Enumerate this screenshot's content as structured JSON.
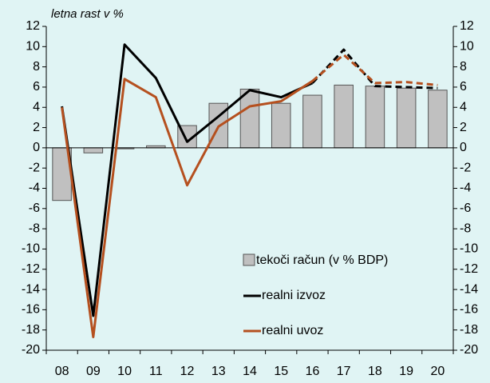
{
  "chart_data": {
    "type": "bar_line",
    "subtitle": "letna rast v %",
    "categories": [
      "08",
      "09",
      "10",
      "11",
      "12",
      "13",
      "14",
      "15",
      "16",
      "17",
      "18",
      "19",
      "20"
    ],
    "series": [
      {
        "name": "tekoči račun  (v % BDP)",
        "kind": "bar",
        "color": "#c0c0c0",
        "values": [
          -5.2,
          -0.5,
          -0.1,
          0.2,
          2.2,
          4.4,
          5.8,
          4.4,
          5.2,
          6.2,
          6.1,
          5.9,
          5.7
        ]
      },
      {
        "name": "realni izvoz",
        "kind": "line",
        "color": "#000000",
        "dashed_from": "16",
        "values": [
          4.1,
          -16.6,
          10.2,
          6.9,
          0.6,
          3.1,
          5.7,
          5.0,
          6.4,
          9.7,
          6.1,
          6.0,
          5.9
        ]
      },
      {
        "name": "realni uvoz",
        "kind": "line",
        "color": "#b5501f",
        "dashed_from": "16",
        "values": [
          4.0,
          -18.7,
          6.8,
          5.0,
          -3.7,
          2.1,
          4.1,
          4.6,
          6.6,
          9.2,
          6.4,
          6.5,
          6.2
        ]
      }
    ],
    "ylim": [
      -20,
      12
    ],
    "yticks": [
      -20,
      -18,
      -16,
      -14,
      -12,
      -10,
      -8,
      -6,
      -4,
      -2,
      0,
      2,
      4,
      6,
      8,
      10,
      12
    ]
  }
}
